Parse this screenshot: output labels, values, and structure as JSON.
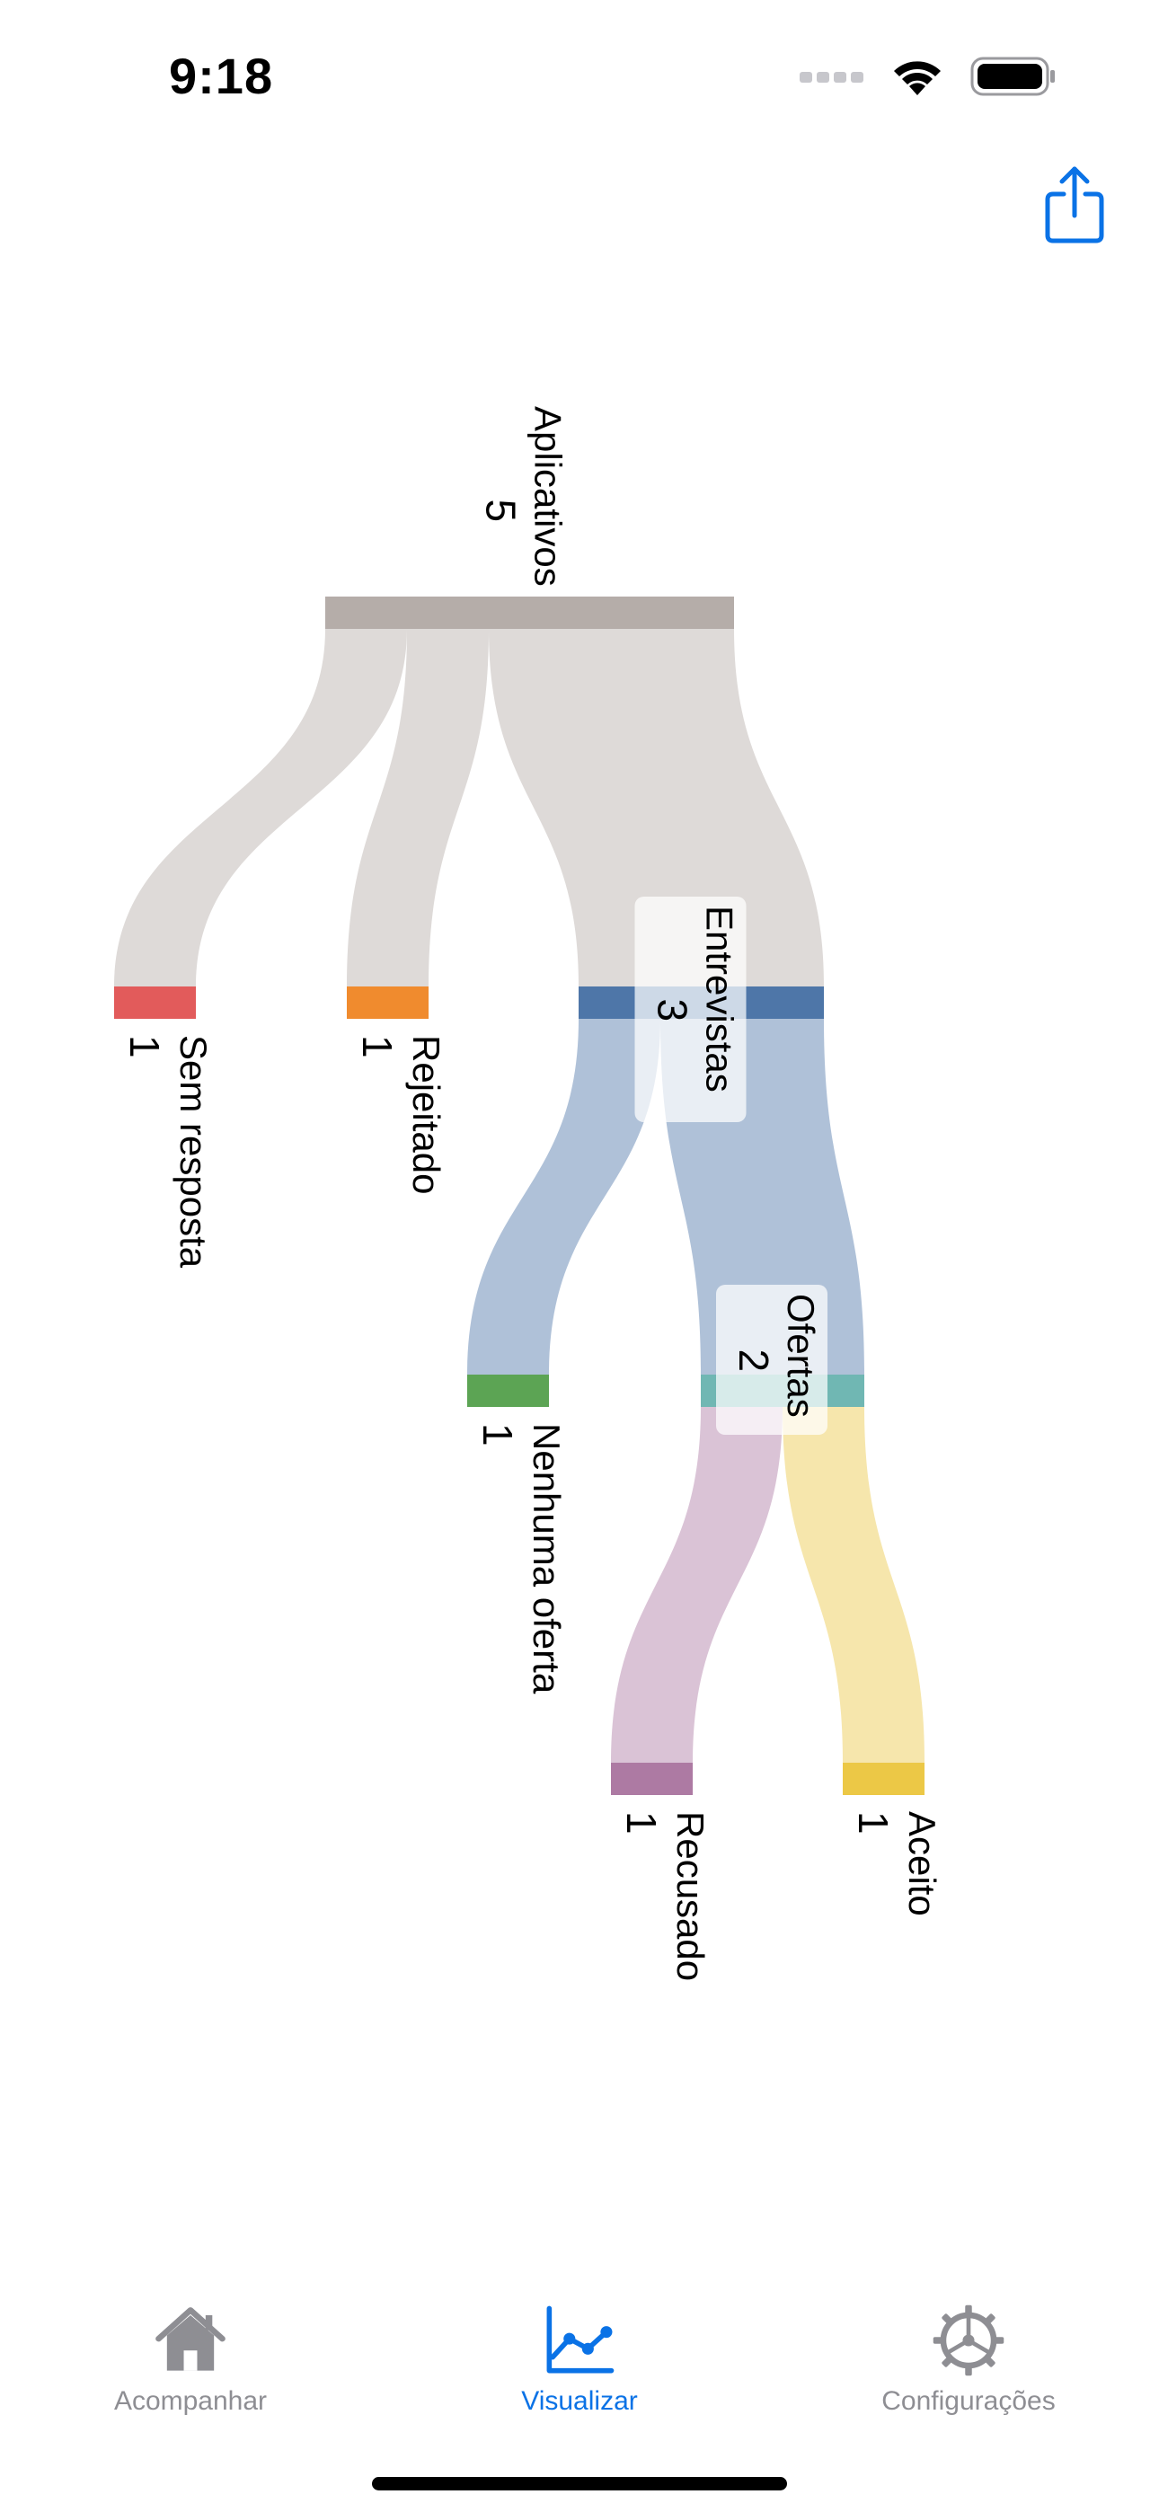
{
  "status_bar": {
    "time": "9:18",
    "icons": [
      "signal-dots-icon",
      "wifi-icon",
      "battery-icon"
    ]
  },
  "toolbar": {
    "share_icon": "share-icon"
  },
  "chart_data": {
    "type": "sankey",
    "nodes": [
      {
        "id": "aplicativos",
        "label": "Aplicativos",
        "value": 5,
        "color": "#b5ada9"
      },
      {
        "id": "sem_resposta",
        "label": "Sem resposta",
        "value": 1,
        "color": "#e25b5b"
      },
      {
        "id": "rejeitado",
        "label": "Rejeitado",
        "value": 1,
        "color": "#f08b2e"
      },
      {
        "id": "entrevistas",
        "label": "Entrevistas",
        "value": 3,
        "color": "#4e76a8"
      },
      {
        "id": "nenhuma_oferta",
        "label": "Nenhuma oferta",
        "value": 1,
        "color": "#5ca454"
      },
      {
        "id": "ofertas",
        "label": "Ofertas",
        "value": 2,
        "color": "#70b7b3"
      },
      {
        "id": "recusado",
        "label": "Recusado",
        "value": 1,
        "color": "#ad7aa3"
      },
      {
        "id": "aceito",
        "label": "Aceito",
        "value": 1,
        "color": "#ecc846"
      }
    ],
    "links": [
      {
        "source": "aplicativos",
        "target": "sem_resposta",
        "value": 1
      },
      {
        "source": "aplicativos",
        "target": "rejeitado",
        "value": 1
      },
      {
        "source": "aplicativos",
        "target": "entrevistas",
        "value": 3
      },
      {
        "source": "entrevistas",
        "target": "nenhuma_oferta",
        "value": 1
      },
      {
        "source": "entrevistas",
        "target": "ofertas",
        "value": 2
      },
      {
        "source": "ofertas",
        "target": "recusado",
        "value": 1
      },
      {
        "source": "ofertas",
        "target": "aceito",
        "value": 1
      }
    ],
    "label_orientation": "rotated-90-clockwise"
  },
  "tab_bar": {
    "tabs": [
      {
        "label": "Acompanhar",
        "icon": "house-icon",
        "active": false
      },
      {
        "label": "Visualizar",
        "icon": "line-chart-icon",
        "active": true
      },
      {
        "label": "Configurações",
        "icon": "gear-icon",
        "active": false
      }
    ],
    "active_color": "#0a72e6",
    "inactive_color": "#8e8e93"
  }
}
